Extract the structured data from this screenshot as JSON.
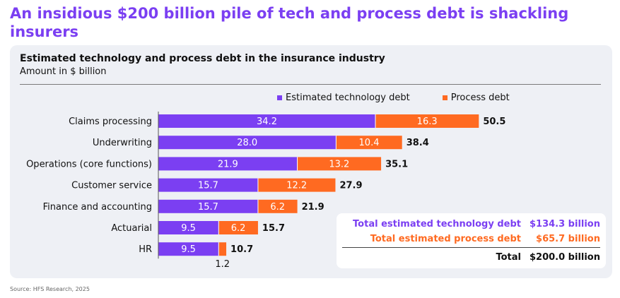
{
  "headline": "An insidious $200 billion pile of tech and process debt is shackling insurers",
  "source": "Source: HFS Research, 2025",
  "colors": {
    "tech": "#7b3ff2",
    "process": "#ff6a21",
    "headline": "#7b3ff2"
  },
  "summary": {
    "tech_label": "Total estimated technology debt",
    "tech_value": "$134.3 billion",
    "process_label": "Total estimated process debt",
    "process_value": "$65.7 billion",
    "total_label": "Total",
    "total_value": "$200.0 billion"
  },
  "chart_data": {
    "type": "bar",
    "orientation": "horizontal",
    "stacked": true,
    "title": "Estimated technology and process debt in the insurance industry",
    "subtitle": "Amount in $ billion",
    "legend_position": "top",
    "categories": [
      "Claims processing",
      "Underwriting",
      "Operations (core functions)",
      "Customer service",
      "Finance and accounting",
      "Actuarial",
      "HR"
    ],
    "series": [
      {
        "name": "Estimated technology debt",
        "values": [
          34.2,
          28.0,
          21.9,
          15.7,
          15.7,
          9.5,
          9.5
        ],
        "labels": [
          "34.2",
          "28.0",
          "21.9",
          "15.7",
          "15.7",
          "9.5",
          "9.5"
        ]
      },
      {
        "name": "Process debt",
        "values": [
          16.3,
          10.4,
          13.2,
          12.2,
          6.2,
          6.2,
          1.2
        ],
        "labels": [
          "16.3",
          "10.4",
          "13.2",
          "12.2",
          "6.2",
          "6.2",
          "1.2"
        ]
      }
    ],
    "totals": [
      "50.5",
      "38.4",
      "35.1",
      "27.9",
      "21.9",
      "15.7",
      "10.7"
    ],
    "xlim": [
      0,
      55
    ]
  }
}
